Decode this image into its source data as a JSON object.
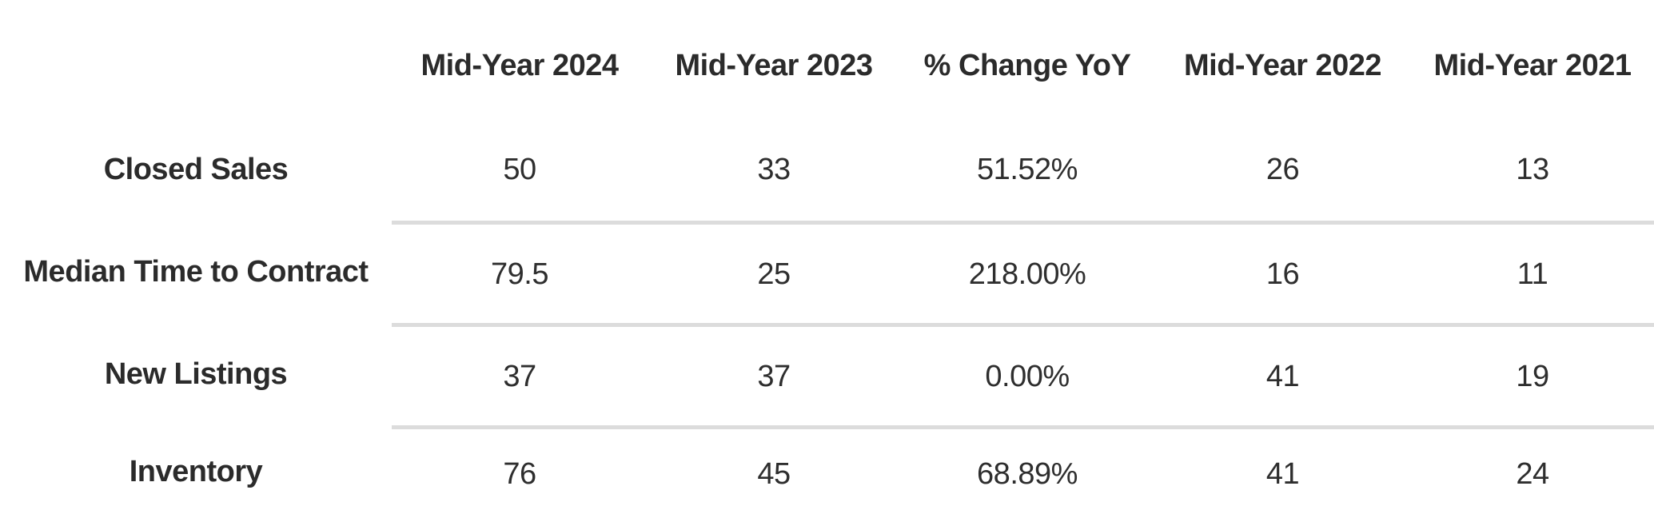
{
  "chart_data": {
    "type": "table",
    "title": "",
    "columns": [
      "",
      "Mid-Year 2024",
      "Mid-Year 2023",
      "% Change YoY",
      "Mid-Year 2022",
      "Mid-Year 2021"
    ],
    "rows": [
      {
        "label": "Closed Sales",
        "values": [
          "50",
          "33",
          "51.52%",
          "26",
          "13"
        ]
      },
      {
        "label": "Median Time to Contract",
        "values": [
          "79.5",
          "25",
          "218.00%",
          "16",
          "11"
        ]
      },
      {
        "label": "New Listings",
        "values": [
          "37",
          "37",
          "0.00%",
          "41",
          "19"
        ]
      },
      {
        "label": "Inventory",
        "values": [
          "76",
          "45",
          "68.89%",
          "41",
          "24"
        ]
      }
    ],
    "layout": {
      "header_row": true,
      "dividers": "between data rows, data columns only",
      "label_column_alignment": "center",
      "value_alignment": "center"
    }
  },
  "colors": {
    "background": "#ffffff",
    "text": "#2b2b2b",
    "divider": "#dcdcdc"
  }
}
